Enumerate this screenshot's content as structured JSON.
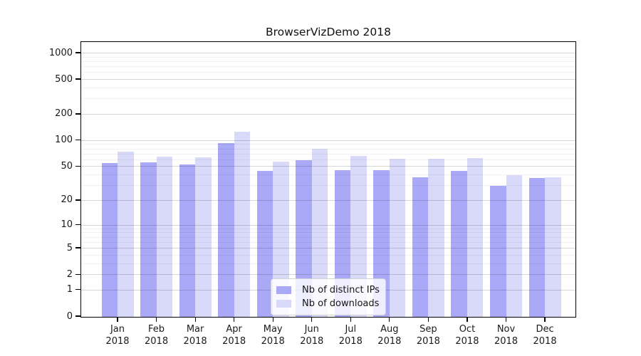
{
  "title": "BrowserVizDemo 2018",
  "chart_data": {
    "type": "bar",
    "title": "BrowserVizDemo 2018",
    "xlabel": "",
    "ylabel": "",
    "year": "2018",
    "categories": [
      "Jan",
      "Feb",
      "Mar",
      "Apr",
      "May",
      "Jun",
      "Jul",
      "Aug",
      "Sep",
      "Oct",
      "Nov",
      "Dec"
    ],
    "series": [
      {
        "name": "Nb of distinct IPs",
        "color": "#a9a9f7",
        "values": [
          55,
          57,
          53,
          94,
          45,
          60,
          46,
          46,
          38,
          45,
          30,
          37
        ]
      },
      {
        "name": "Nb of downloads",
        "color": "#d9d9fa",
        "values": [
          75,
          66,
          65,
          128,
          58,
          81,
          67,
          62,
          62,
          63,
          40,
          38
        ]
      }
    ],
    "yscale": "log1p",
    "ylim": [
      0,
      1000
    ],
    "yticks": [
      0,
      1,
      2,
      5,
      10,
      20,
      50,
      100,
      200,
      500,
      1000
    ],
    "yticks_minor": [
      3,
      4,
      6,
      7,
      8,
      9,
      30,
      40,
      60,
      70,
      80,
      90,
      300,
      400,
      600,
      700,
      800,
      900
    ],
    "grid": true,
    "legend_position": "inside lower-center"
  },
  "colors": {
    "background": "#ffffff",
    "bar_distinct_ips": "#a9a9f7",
    "bar_downloads": "#d9d9fa",
    "grid_major": "#d6d6d6",
    "grid_minor": "#efefef",
    "axis": "#000000",
    "text": "#1a1a1a"
  }
}
